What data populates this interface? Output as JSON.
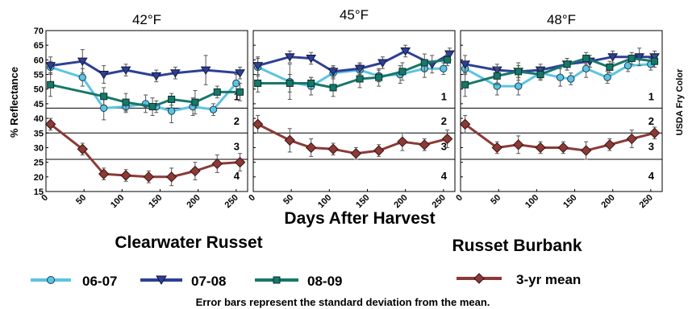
{
  "chart_data": {
    "type": "line",
    "ylabel": "% Reflectance",
    "ylabel_right": "USDA Fry Color",
    "xlabel": "Days After Harvest",
    "xlim": [
      0,
      265
    ],
    "ylim": [
      15,
      70
    ],
    "y_ticks": [
      15,
      20,
      25,
      30,
      35,
      40,
      45,
      50,
      55,
      60,
      65,
      70
    ],
    "x_ticks": [
      0,
      50,
      100,
      150,
      200,
      250
    ],
    "grid": false,
    "fry_color_thresholds": [
      43.5,
      35,
      26
    ],
    "fry_color_zones": [
      "1",
      "2",
      "3",
      "4"
    ],
    "cultivar_labels": [
      "Clearwater Russet",
      "Russet Burbank"
    ],
    "colors": {
      "06-07": "#5bc4e0",
      "07-08": "#2e3f96",
      "08-09": "#16786a",
      "mean": "#8b3a36"
    },
    "series_meta": [
      {
        "key": "06-07",
        "name": "06-07",
        "marker": "circle"
      },
      {
        "key": "07-08",
        "name": "07-08",
        "marker": "triangle-down"
      },
      {
        "key": "08-09",
        "name": "08-09",
        "marker": "square"
      },
      {
        "key": "mean",
        "name": "3-yr mean",
        "marker": "diamond"
      }
    ],
    "panels": [
      {
        "title": "42°F",
        "series": {
          "06-07": {
            "x": [
              6,
              48,
              76,
              105,
              131,
              145,
              165,
              193,
              220,
              250
            ],
            "y": [
              57.5,
              54,
              43.5,
              44,
              45,
              44,
              42.5,
              44,
              43,
              52
            ],
            "err": [
              2,
              3,
              4,
              2,
              3,
              2,
              4,
              3,
              2,
              3
            ]
          },
          "07-08": {
            "x": [
              6,
              48,
              76,
              105,
              145,
              170,
              210,
              255
            ],
            "y": [
              58,
              59.5,
              55,
              56.5,
              54.5,
              55.5,
              56.5,
              55.5
            ],
            "err": [
              3,
              4,
              3,
              2,
              2,
              2,
              5,
              2
            ]
          },
          "08-09": {
            "x": [
              6,
              76,
              105,
              140,
              165,
              196,
              225,
              255
            ],
            "y": [
              51.5,
              47.5,
              45.5,
              44,
              46.5,
              45.5,
              49,
              49
            ],
            "err": [
              4,
              3,
              3,
              3,
              2,
              4,
              2,
              3
            ]
          },
          "mean": {
            "x": [
              6,
              48,
              76,
              105,
              135,
              165,
              196,
              225,
              255
            ],
            "y": [
              38,
              29.5,
              21,
              20.5,
              20,
              20,
              22,
              24.5,
              25
            ],
            "err": [
              2,
              2,
              2,
              2,
              2,
              3,
              3,
              3,
              3
            ]
          }
        }
      },
      {
        "title": "45°F",
        "series": {
          "06-07": {
            "x": [
              6,
              48,
              76,
              105,
              140,
              165,
              193,
              225,
              250
            ],
            "y": [
              57.5,
              52.5,
              51,
              55.5,
              56.5,
              54.5,
              55,
              57,
              57
            ],
            "err": [
              3,
              6,
              3,
              2,
              2,
              2,
              3,
              3,
              2
            ]
          },
          "07-08": {
            "x": [
              6,
              48,
              76,
              105,
              140,
              170,
              200,
              235,
              258
            ],
            "y": [
              58,
              61,
              60.5,
              56,
              57,
              59,
              63,
              58.5,
              62
            ],
            "err": [
              3,
              2,
              2,
              2,
              2,
              2,
              2,
              3,
              2
            ]
          },
          "08-09": {
            "x": [
              6,
              48,
              76,
              105,
              140,
              165,
              196,
              225,
              255
            ],
            "y": [
              52,
              52,
              52,
              50.5,
              53.5,
              54,
              56,
              59,
              60
            ],
            "err": [
              3,
              3,
              2,
              3,
              3,
              3,
              3,
              3,
              2
            ]
          },
          "mean": {
            "x": [
              6,
              48,
              76,
              105,
              135,
              165,
              196,
              225,
              255
            ],
            "y": [
              38,
              32.5,
              30,
              29.5,
              28,
              29,
              32,
              31,
              33
            ],
            "err": [
              3,
              4,
              3,
              2,
              2,
              2,
              3,
              2,
              3
            ]
          }
        }
      },
      {
        "title": "48°F",
        "series": {
          "06-07": {
            "x": [
              6,
              48,
              76,
              105,
              131,
              145,
              165,
              193,
              220,
              250
            ],
            "y": [
              57,
              51,
              51,
              55.5,
              54,
              53.5,
              57,
              54,
              58,
              58.5
            ],
            "err": [
              2,
              3,
              3,
              2,
              3,
              2,
              3,
              2,
              2,
              2
            ]
          },
          "07-08": {
            "x": [
              6,
              48,
              76,
              105,
              140,
              170,
              200,
              235,
              255
            ],
            "y": [
              58.5,
              56.5,
              56,
              56.5,
              58.5,
              59.5,
              61,
              61,
              61
            ],
            "err": [
              3,
              2,
              3,
              2,
              2,
              2,
              2,
              3,
              2
            ]
          },
          "08-09": {
            "x": [
              6,
              48,
              76,
              105,
              140,
              165,
              196,
              225,
              255
            ],
            "y": [
              51.5,
              54.5,
              56,
              55,
              58.5,
              60.5,
              57.5,
              60.5,
              59.5
            ],
            "err": [
              4,
              3,
              2,
              2,
              2,
              2,
              2,
              2,
              2
            ]
          },
          "mean": {
            "x": [
              6,
              48,
              76,
              105,
              135,
              165,
              196,
              225,
              255
            ],
            "y": [
              38,
              30,
              31,
              30,
              30,
              29,
              31,
              33,
              35
            ],
            "err": [
              3,
              2,
              3,
              2,
              2,
              3,
              2,
              3,
              2
            ]
          }
        }
      }
    ]
  },
  "legend_note": "Error bars represent the standard deviation from the mean."
}
